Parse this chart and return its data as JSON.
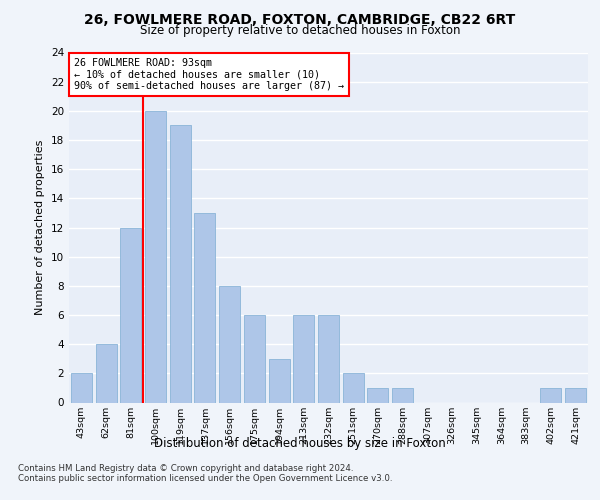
{
  "title_line1": "26, FOWLMERE ROAD, FOXTON, CAMBRIDGE, CB22 6RT",
  "title_line2": "Size of property relative to detached houses in Foxton",
  "xlabel": "Distribution of detached houses by size in Foxton",
  "ylabel": "Number of detached properties",
  "categories": [
    "43sqm",
    "62sqm",
    "81sqm",
    "100sqm",
    "119sqm",
    "137sqm",
    "156sqm",
    "175sqm",
    "194sqm",
    "213sqm",
    "232sqm",
    "251sqm",
    "270sqm",
    "288sqm",
    "307sqm",
    "326sqm",
    "345sqm",
    "364sqm",
    "383sqm",
    "402sqm",
    "421sqm"
  ],
  "values": [
    2,
    4,
    12,
    20,
    19,
    13,
    8,
    6,
    3,
    6,
    6,
    2,
    1,
    1,
    0,
    0,
    0,
    0,
    0,
    1,
    1
  ],
  "bar_color": "#aec6e8",
  "bar_edgecolor": "#8ab4d8",
  "annotation_line1": "26 FOWLMERE ROAD: 93sqm",
  "annotation_line2": "← 10% of detached houses are smaller (10)",
  "annotation_line3": "90% of semi-detached houses are larger (87) →",
  "ylim": [
    0,
    24
  ],
  "yticks": [
    0,
    2,
    4,
    6,
    8,
    10,
    12,
    14,
    16,
    18,
    20,
    22,
    24
  ],
  "footnote_line1": "Contains HM Land Registry data © Crown copyright and database right 2024.",
  "footnote_line2": "Contains public sector information licensed under the Open Government Licence v3.0.",
  "background_color": "#f0f4fa",
  "plot_background": "#e8eef8",
  "grid_color": "#ffffff"
}
